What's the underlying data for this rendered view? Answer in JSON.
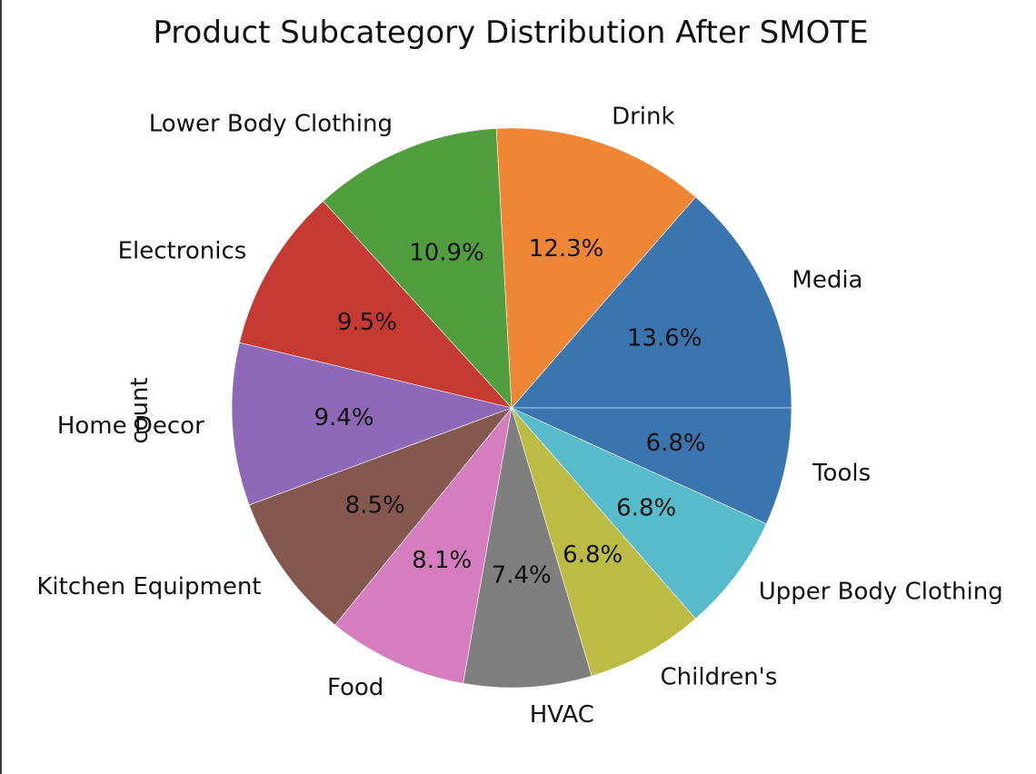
{
  "chart_data": {
    "type": "pie",
    "title": "Product Subcategory Distribution After SMOTE",
    "ylabel": "count",
    "slices": [
      {
        "label": "Media",
        "pct": 13.6,
        "pct_text": "13.6%",
        "color": "#3b75af"
      },
      {
        "label": "Drink",
        "pct": 12.3,
        "pct_text": "12.3%",
        "color": "#ef8636"
      },
      {
        "label": "Lower Body Clothing",
        "pct": 10.9,
        "pct_text": "10.9%",
        "color": "#519e3e"
      },
      {
        "label": "Electronics",
        "pct": 9.5,
        "pct_text": "9.5%",
        "color": "#c53a32"
      },
      {
        "label": "Home Decor",
        "pct": 9.4,
        "pct_text": "9.4%",
        "color": "#8d69b8"
      },
      {
        "label": "Kitchen Equipment",
        "pct": 8.5,
        "pct_text": "8.5%",
        "color": "#84584e"
      },
      {
        "label": "Food",
        "pct": 8.1,
        "pct_text": "8.1%",
        "color": "#d57dbe"
      },
      {
        "label": "HVAC",
        "pct": 7.4,
        "pct_text": "7.4%",
        "color": "#7f7f7f"
      },
      {
        "label": "Children's",
        "pct": 6.8,
        "pct_text": "6.8%",
        "color": "#bcbc45"
      },
      {
        "label": "Upper Body Clothing",
        "pct": 6.8,
        "pct_text": "6.8%",
        "color": "#58bbcc"
      },
      {
        "label": "Tools",
        "pct": 6.8,
        "pct_text": "6.8%",
        "color": "#3b75af"
      }
    ]
  }
}
